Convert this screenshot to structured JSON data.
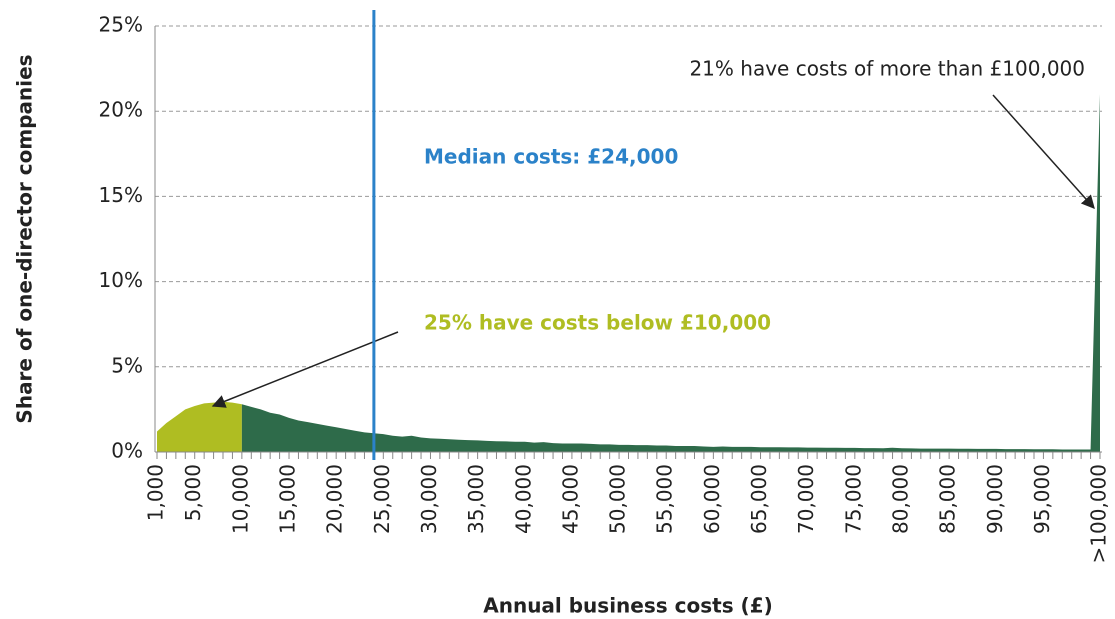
{
  "chart_data": {
    "type": "area",
    "y_label": "Share of one-director companies",
    "x_label": "Annual business costs (£)",
    "categories": [
      "1,000",
      null,
      null,
      null,
      "5,000",
      null,
      null,
      null,
      null,
      "10,000",
      null,
      null,
      null,
      null,
      "15,000",
      null,
      null,
      null,
      null,
      "20,000",
      null,
      null,
      null,
      null,
      "25,000",
      null,
      null,
      null,
      null,
      "30,000",
      null,
      null,
      null,
      null,
      "35,000",
      null,
      null,
      null,
      null,
      "40,000",
      null,
      null,
      null,
      null,
      "45,000",
      null,
      null,
      null,
      null,
      "50,000",
      null,
      null,
      null,
      null,
      "55,000",
      null,
      null,
      null,
      null,
      "60,000",
      null,
      null,
      null,
      null,
      "65,000",
      null,
      null,
      null,
      null,
      "70,000",
      null,
      null,
      null,
      null,
      "75,000",
      null,
      null,
      null,
      null,
      "80,000",
      null,
      null,
      null,
      null,
      "85,000",
      null,
      null,
      null,
      null,
      "90,000",
      null,
      null,
      null,
      null,
      "95,000",
      null,
      null,
      null,
      null,
      null,
      ">100,000"
    ],
    "series": [
      {
        "color": "#afbd22",
        "values": [
          1.2,
          1.7,
          2.1,
          2.5,
          2.7,
          2.85,
          2.9,
          2.95,
          2.9,
          2.8,
          null,
          null,
          null,
          null,
          null,
          null,
          null,
          null,
          null,
          null,
          null,
          null,
          null,
          null,
          null,
          null,
          null,
          null,
          null,
          null,
          null,
          null,
          null,
          null,
          null,
          null,
          null,
          null,
          null,
          null,
          null,
          null,
          null,
          null,
          null,
          null,
          null,
          null,
          null,
          null,
          null,
          null,
          null,
          null,
          null,
          null,
          null,
          null,
          null,
          null,
          null,
          null,
          null,
          null,
          null,
          null,
          null,
          null,
          null,
          null,
          null,
          null,
          null,
          null,
          null,
          null,
          null,
          null,
          null,
          null,
          null,
          null,
          null,
          null,
          null,
          null,
          null,
          null,
          null,
          null,
          null,
          null,
          null,
          null,
          null,
          null,
          null,
          null,
          null,
          null,
          null
        ]
      },
      {
        "color": "#2e6b4a",
        "values": [
          null,
          null,
          null,
          null,
          null,
          null,
          null,
          null,
          null,
          2.8,
          2.65,
          2.5,
          2.3,
          2.2,
          2.0,
          1.85,
          1.75,
          1.65,
          1.55,
          1.45,
          1.35,
          1.25,
          1.15,
          1.1,
          1.05,
          0.95,
          0.9,
          0.95,
          0.85,
          0.8,
          0.78,
          0.75,
          0.72,
          0.7,
          0.68,
          0.65,
          0.63,
          0.62,
          0.6,
          0.6,
          0.55,
          0.58,
          0.52,
          0.5,
          0.5,
          0.5,
          0.48,
          0.45,
          0.45,
          0.42,
          0.42,
          0.4,
          0.4,
          0.38,
          0.38,
          0.35,
          0.35,
          0.35,
          0.32,
          0.3,
          0.32,
          0.3,
          0.3,
          0.3,
          0.28,
          0.28,
          0.28,
          0.27,
          0.27,
          0.26,
          0.26,
          0.25,
          0.25,
          0.24,
          0.24,
          0.23,
          0.23,
          0.22,
          0.25,
          0.22,
          0.21,
          0.2,
          0.2,
          0.2,
          0.2,
          0.19,
          0.19,
          0.18,
          0.18,
          0.18,
          0.17,
          0.17,
          0.17,
          0.16,
          0.16,
          0.16,
          0.15,
          0.15,
          0.15,
          0.15,
          21
        ]
      }
    ],
    "ylim": [
      0,
      25
    ],
    "yticks": [
      {
        "value": 0,
        "label": "0%"
      },
      {
        "value": 5,
        "label": "5%"
      },
      {
        "value": 10,
        "label": "10%"
      },
      {
        "value": 15,
        "label": "15%"
      },
      {
        "value": 20,
        "label": "20%"
      },
      {
        "value": 25,
        "label": "25%"
      }
    ],
    "grid": true,
    "median": {
      "value": 24000,
      "label": "Median costs: £24,000",
      "color": "#2b82c9"
    },
    "annotations": [
      {
        "text": "25% have costs below £10,000",
        "color": "#afbd22"
      },
      {
        "text": "21% have costs of more than £100,000",
        "color": "#222222"
      }
    ]
  }
}
